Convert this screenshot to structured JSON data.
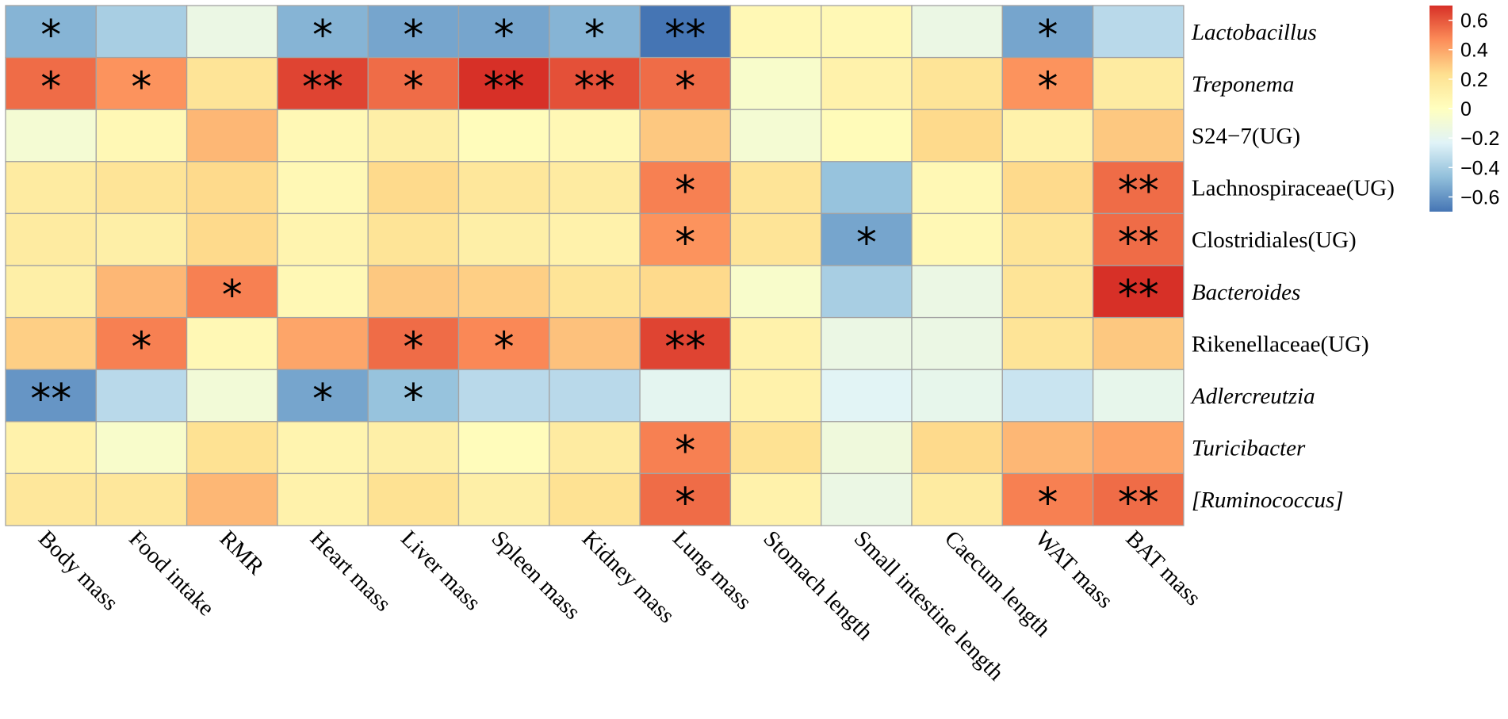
{
  "chart_data": {
    "type": "heatmap",
    "title": "",
    "rows": [
      {
        "label": "Lactobacillus",
        "italic": true
      },
      {
        "label": "Treponema",
        "italic": true
      },
      {
        "label": "S24−7(UG)",
        "italic": false
      },
      {
        "label": "Lachnospiraceae(UG)",
        "italic": false
      },
      {
        "label": "Clostridiales(UG)",
        "italic": false
      },
      {
        "label": "Bacteroides",
        "italic": true
      },
      {
        "label": "Rikenellaceae(UG)",
        "italic": false
      },
      {
        "label": "Adlercreutzia",
        "italic": true
      },
      {
        "label": "Turicibacter",
        "italic": true
      },
      {
        "label": "[Ruminococcus]",
        "italic": true
      }
    ],
    "columns": [
      "Body mass",
      "Food intake",
      "RMR",
      "Heart mass",
      "Liver mass",
      "Spleen mass",
      "Kidney mass",
      "Lung mass",
      "Stomach length",
      "Small intestine length",
      "Caecum length",
      "WAT mass",
      "BAT mass"
    ],
    "values": [
      [
        -0.5,
        -0.4,
        -0.15,
        -0.5,
        -0.55,
        -0.55,
        -0.5,
        -0.7,
        0.05,
        0.05,
        -0.15,
        -0.55,
        -0.35
      ],
      [
        0.55,
        0.45,
        0.2,
        0.65,
        0.55,
        0.7,
        0.62,
        0.55,
        -0.05,
        0.1,
        0.2,
        0.45,
        0.15
      ],
      [
        -0.08,
        0.05,
        0.35,
        0.05,
        0.12,
        0.02,
        0.05,
        0.3,
        -0.08,
        0.03,
        0.25,
        0.1,
        0.3
      ],
      [
        0.15,
        0.2,
        0.25,
        0.05,
        0.25,
        0.18,
        0.15,
        0.5,
        0.2,
        -0.45,
        0.05,
        0.25,
        0.55
      ],
      [
        0.15,
        0.12,
        0.25,
        0.08,
        0.2,
        0.12,
        0.1,
        0.45,
        0.2,
        -0.55,
        0.05,
        0.2,
        0.55
      ],
      [
        0.12,
        0.35,
        0.5,
        0.05,
        0.3,
        0.28,
        0.2,
        0.25,
        -0.05,
        -0.4,
        -0.15,
        0.2,
        0.7
      ],
      [
        0.28,
        0.5,
        0.05,
        0.4,
        0.55,
        0.48,
        0.32,
        0.65,
        0.1,
        -0.15,
        -0.15,
        0.2,
        0.3
      ],
      [
        -0.6,
        -0.35,
        -0.1,
        -0.55,
        -0.45,
        -0.35,
        -0.35,
        -0.2,
        0.1,
        -0.22,
        -0.18,
        -0.3,
        -0.18
      ],
      [
        0.1,
        -0.05,
        0.22,
        0.08,
        0.12,
        0.02,
        0.15,
        0.5,
        0.22,
        -0.12,
        0.25,
        0.35,
        0.4
      ],
      [
        0.18,
        0.18,
        0.35,
        0.1,
        0.22,
        0.12,
        0.22,
        0.55,
        0.1,
        -0.15,
        0.15,
        0.5,
        0.55
      ]
    ],
    "significance": [
      [
        "*",
        "",
        "",
        "*",
        "*",
        "*",
        "*",
        "**",
        "",
        "",
        "",
        "*",
        ""
      ],
      [
        "*",
        "*",
        "",
        "**",
        "*",
        "**",
        "**",
        "*",
        "",
        "",
        "",
        "*",
        ""
      ],
      [
        "",
        "",
        "",
        "",
        "",
        "",
        "",
        "",
        "",
        "",
        "",
        "",
        ""
      ],
      [
        "",
        "",
        "",
        "",
        "",
        "",
        "",
        "*",
        "",
        "",
        "",
        "",
        "**"
      ],
      [
        "",
        "",
        "",
        "",
        "",
        "",
        "",
        "*",
        "",
        "*",
        "",
        "",
        "**"
      ],
      [
        "",
        "",
        "*",
        "",
        "",
        "",
        "",
        "",
        "",
        "",
        "",
        "",
        "**"
      ],
      [
        "",
        "*",
        "",
        "",
        "*",
        "*",
        "",
        "**",
        "",
        "",
        "",
        "",
        ""
      ],
      [
        "**",
        "",
        "",
        "*",
        "*",
        "",
        "",
        "",
        "",
        "",
        "",
        "",
        ""
      ],
      [
        "",
        "",
        "",
        "",
        "",
        "",
        "",
        "*",
        "",
        "",
        "",
        "",
        ""
      ],
      [
        "",
        "",
        "",
        "",
        "",
        "",
        "",
        "*",
        "",
        "",
        "",
        "*",
        "**"
      ]
    ],
    "color_scale": {
      "range": [
        -0.7,
        0.7
      ],
      "colors": [
        "#4575b4",
        "#91bfdb",
        "#e0f3f8",
        "#ffffbf",
        "#fee090",
        "#fc8d59",
        "#d73027"
      ],
      "ticks": [
        0.6,
        0.4,
        0.2,
        0,
        -0.2,
        -0.4,
        -0.6
      ],
      "tick_labels": [
        "0.6",
        "0.4",
        "0.2",
        "0",
        "−0.2",
        "−0.4",
        "−0.6"
      ]
    },
    "legend": "right"
  }
}
